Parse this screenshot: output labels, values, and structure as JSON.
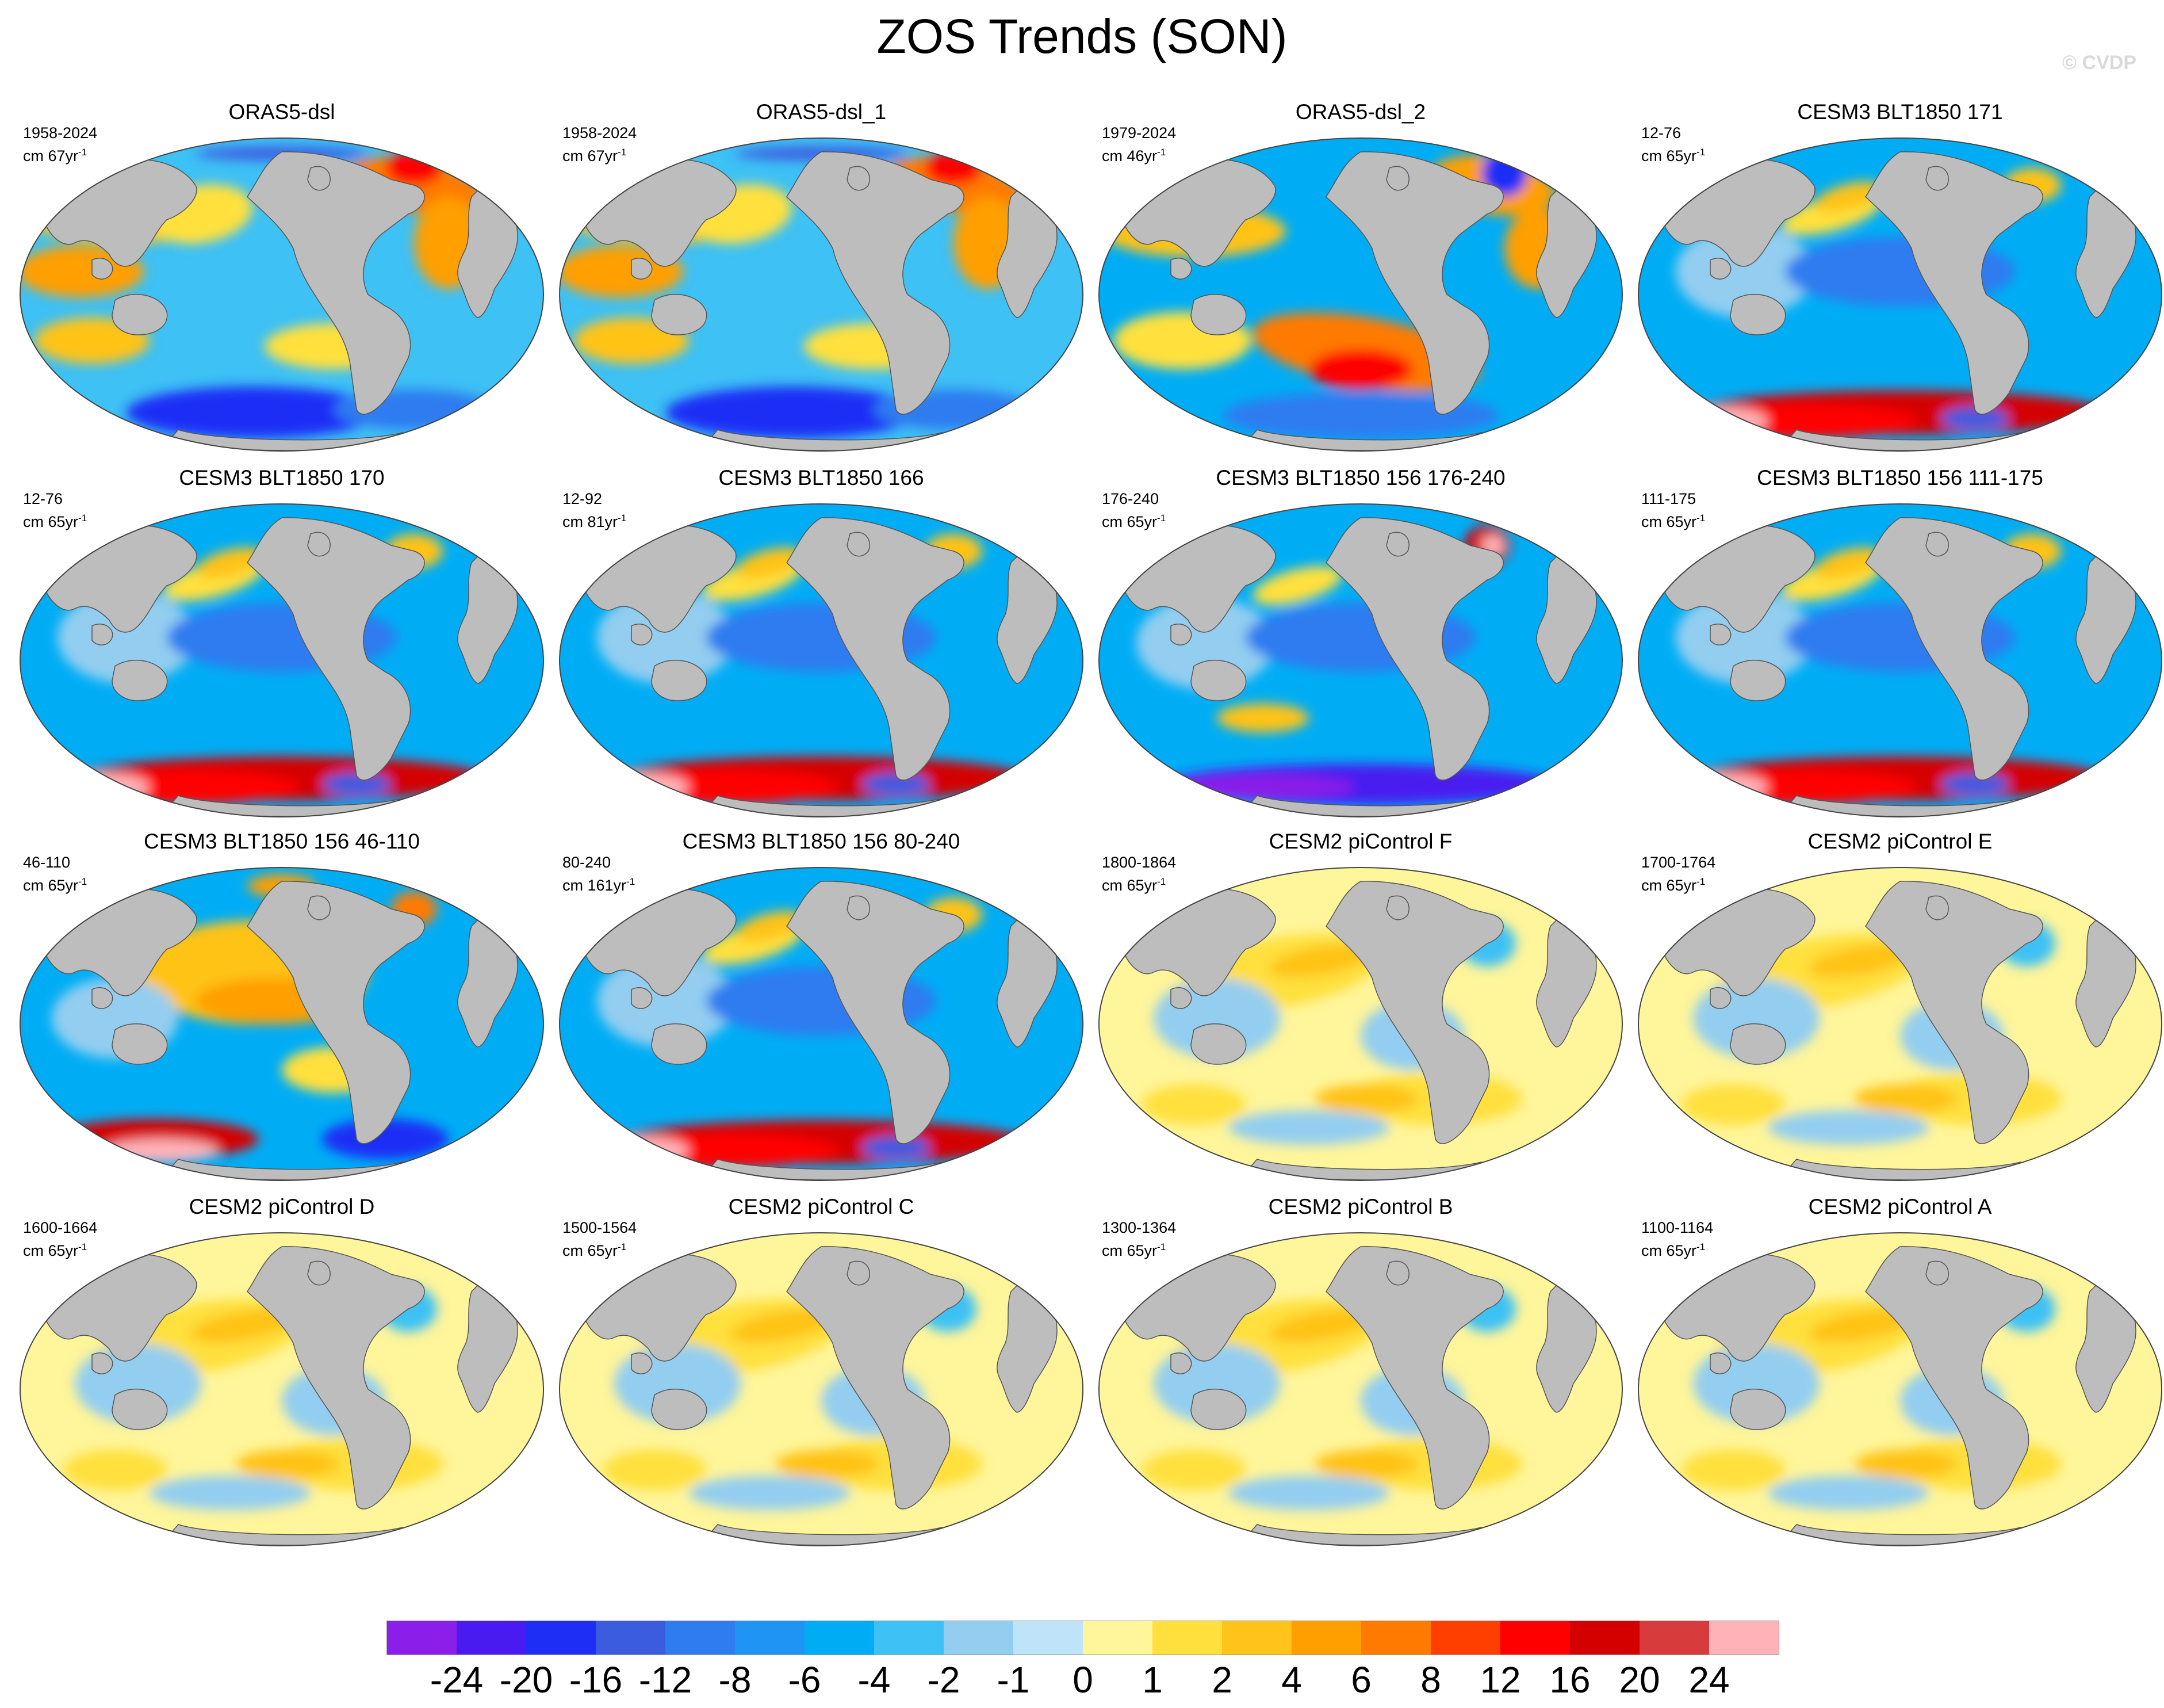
{
  "title": "ZOS Trends (SON)",
  "watermark": "© CVDP",
  "chart_data": {
    "type": "heatmap",
    "projection": "global map (Robinson-like), filled contours of sea-surface-height trend",
    "variable": "ZOS",
    "season": "SON",
    "panels": [
      {
        "name": "ORAS5-dsl",
        "period": "1958-2024",
        "units": "cm 67yr",
        "units_exp": "-1",
        "pattern": "obs"
      },
      {
        "name": "ORAS5-dsl_1",
        "period": "1958-2024",
        "units": "cm 67yr",
        "units_exp": "-1",
        "pattern": "obs"
      },
      {
        "name": "ORAS5-dsl_2",
        "period": "1979-2024",
        "units": "cm 46yr",
        "units_exp": "-1",
        "pattern": "obs2"
      },
      {
        "name": "CESM3 BLT1850 171",
        "period": "12-76",
        "units": "cm 65yr",
        "units_exp": "-1",
        "pattern": "blue_so_red"
      },
      {
        "name": "CESM3 BLT1850 170",
        "period": "12-76",
        "units": "cm 65yr",
        "units_exp": "-1",
        "pattern": "blue_so_red"
      },
      {
        "name": "CESM3 BLT1850 166",
        "period": "12-92",
        "units": "cm 81yr",
        "units_exp": "-1",
        "pattern": "blue_so_red"
      },
      {
        "name": "CESM3 BLT1850 156 176-240",
        "period": "176-240",
        "units": "cm 65yr",
        "units_exp": "-1",
        "pattern": "blue_so_blue"
      },
      {
        "name": "CESM3 BLT1850 156 111-175",
        "period": "111-175",
        "units": "cm 65yr",
        "units_exp": "-1",
        "pattern": "blue_so_red"
      },
      {
        "name": "CESM3 BLT1850 156 46-110",
        "period": "46-110",
        "units": "cm 65yr",
        "units_exp": "-1",
        "pattern": "orange_pac"
      },
      {
        "name": "CESM3 BLT1850 156 80-240",
        "period": "80-240",
        "units": "cm 161yr",
        "units_exp": "-1",
        "pattern": "blue_so_red"
      },
      {
        "name": "CESM2 piControl F",
        "period": "1800-1864",
        "units": "cm 65yr",
        "units_exp": "-1",
        "pattern": "pi"
      },
      {
        "name": "CESM2 piControl E",
        "period": "1700-1764",
        "units": "cm 65yr",
        "units_exp": "-1",
        "pattern": "pi"
      },
      {
        "name": "CESM2 piControl D",
        "period": "1600-1664",
        "units": "cm 65yr",
        "units_exp": "-1",
        "pattern": "pi"
      },
      {
        "name": "CESM2 piControl C",
        "period": "1500-1564",
        "units": "cm 65yr",
        "units_exp": "-1",
        "pattern": "pi"
      },
      {
        "name": "CESM2 piControl B",
        "period": "1300-1364",
        "units": "cm 65yr",
        "units_exp": "-1",
        "pattern": "pi"
      },
      {
        "name": "CESM2 piControl A",
        "period": "1100-1164",
        "units": "cm 65yr",
        "units_exp": "-1",
        "pattern": "pi"
      }
    ],
    "colorbar": {
      "levels": [
        "-24",
        "-20",
        "-16",
        "-12",
        "-8",
        "-6",
        "-4",
        "-2",
        "-1",
        "0",
        "1",
        "2",
        "4",
        "6",
        "8",
        "12",
        "16",
        "20",
        "24"
      ],
      "colors": [
        "#8b1ee8",
        "#4a1bf0",
        "#1f2ef5",
        "#3c5ce0",
        "#2f7cf0",
        "#1f94f5",
        "#00adf5",
        "#3ec1f5",
        "#93cef0",
        "#bfe3f8",
        "#fff59a",
        "#ffe03c",
        "#ffc319",
        "#ff9f00",
        "#ff7a00",
        "#ff3f00",
        "#ff0000",
        "#d40000",
        "#d83b3b",
        "#ffb3b8"
      ]
    }
  }
}
